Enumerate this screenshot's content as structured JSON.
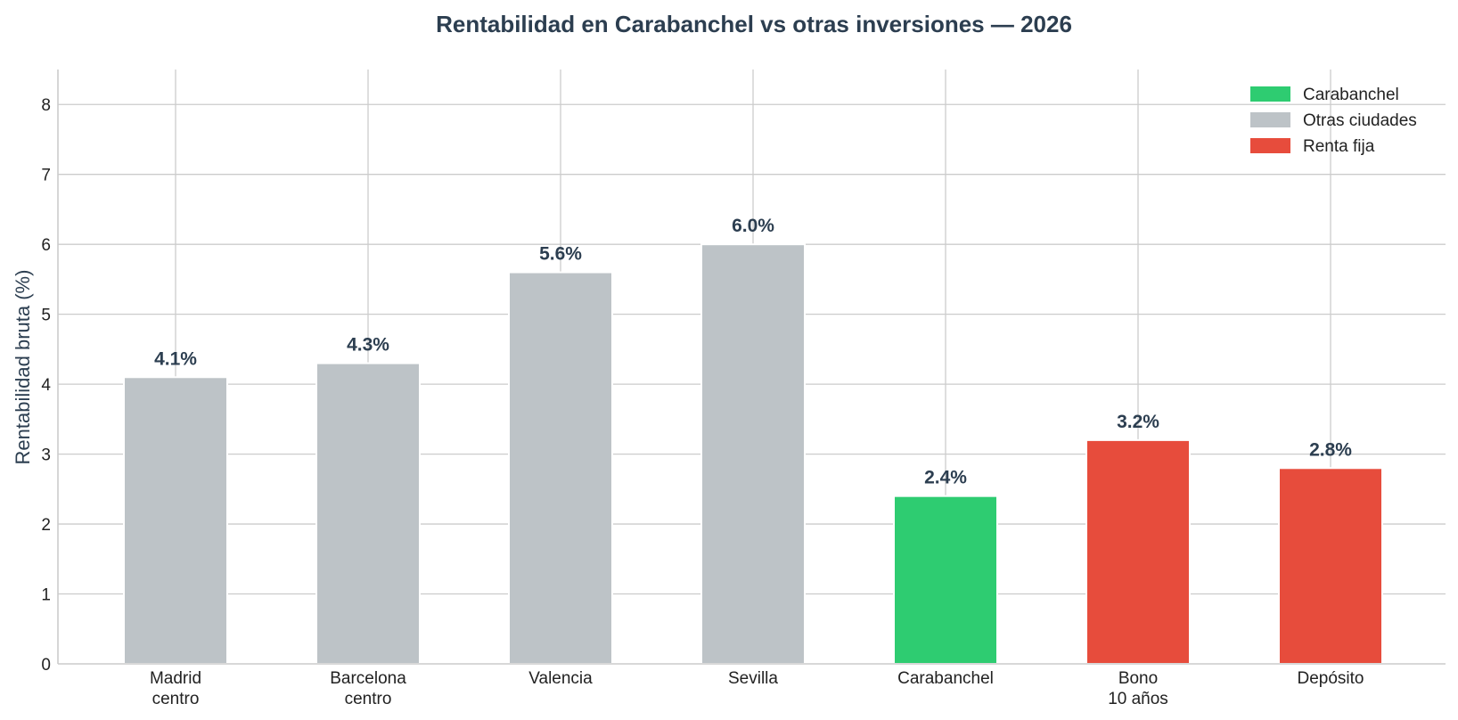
{
  "chart_data": {
    "type": "bar",
    "title": "Rentabilidad en Carabanchel vs otras inversiones — 2026",
    "xlabel": "",
    "ylabel": "Rentabilidad bruta (%)",
    "ylim": [
      0,
      8.5
    ],
    "yticks": [
      "0",
      "1",
      "2",
      "3",
      "4",
      "5",
      "6",
      "7",
      "8"
    ],
    "grid": true,
    "legend_position": "top-right",
    "categories": [
      [
        "Madrid",
        "centro"
      ],
      [
        "Barcelona",
        "centro"
      ],
      [
        "Valencia"
      ],
      [
        "Sevilla"
      ],
      [
        "Carabanchel"
      ],
      [
        "Bono",
        "10 años"
      ],
      [
        "Depósito"
      ]
    ],
    "values": [
      4.1,
      4.3,
      5.6,
      6.0,
      2.4,
      3.2,
      2.8
    ],
    "value_labels": [
      "4.1%",
      "4.3%",
      "5.6%",
      "6.0%",
      "2.4%",
      "3.2%",
      "2.8%"
    ],
    "groups": [
      "Otras ciudades",
      "Otras ciudades",
      "Otras ciudades",
      "Otras ciudades",
      "Carabanchel",
      "Renta fija",
      "Renta fija"
    ],
    "legend": [
      {
        "name": "Carabanchel",
        "color": "#2ecc71"
      },
      {
        "name": "Otras ciudades",
        "color": "#bdc3c7"
      },
      {
        "name": "Renta fija",
        "color": "#e74c3c"
      }
    ]
  }
}
